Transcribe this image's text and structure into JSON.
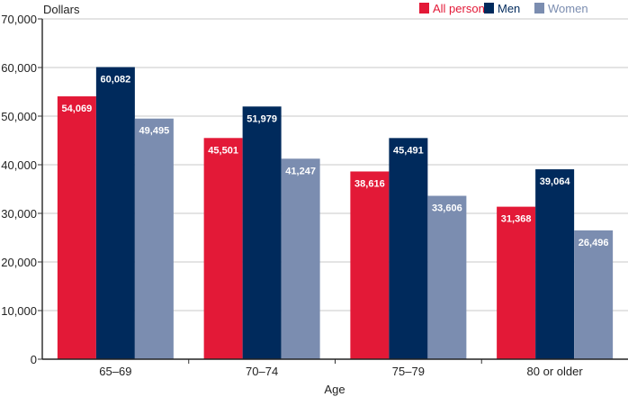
{
  "chart_data": {
    "type": "bar",
    "title": "",
    "ylabel": "Dollars",
    "xlabel": "Age",
    "ylim": [
      0,
      70000
    ],
    "yticks": [
      0,
      10000,
      20000,
      30000,
      40000,
      50000,
      60000,
      70000
    ],
    "ytick_labels": [
      "0",
      "10,000",
      "20,000",
      "30,000",
      "40,000",
      "50,000",
      "60,000",
      "70,000"
    ],
    "grid": true,
    "legend_position": "top-right",
    "categories": [
      "65–69",
      "70–74",
      "75–79",
      "80 or older"
    ],
    "series": [
      {
        "name": "All persons",
        "color": "#e31937",
        "values": [
          54069,
          45501,
          38616,
          31368
        ],
        "labels": [
          "54,069",
          "45,501",
          "38,616",
          "31,368"
        ]
      },
      {
        "name": "Men",
        "color": "#002a5c",
        "values": [
          60082,
          51979,
          45491,
          39064
        ],
        "labels": [
          "60,082",
          "51,979",
          "45,491",
          "39,064"
        ]
      },
      {
        "name": "Women",
        "color": "#7b8db0",
        "values": [
          49495,
          41247,
          33606,
          26496
        ],
        "labels": [
          "49,495",
          "41,247",
          "33,606",
          "26,496"
        ]
      }
    ]
  }
}
